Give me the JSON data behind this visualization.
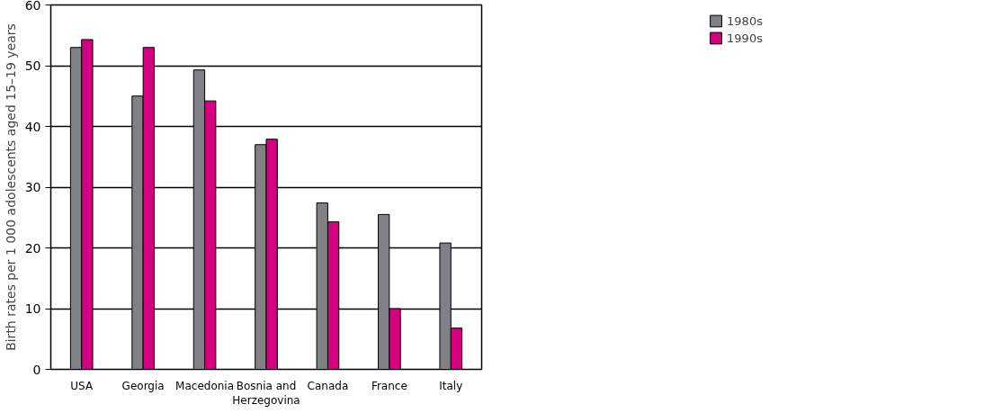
{
  "chart_data": {
    "type": "bar",
    "ylabel": "Birth rates per 1 000 adolescents aged 15–19 years",
    "categories": [
      "USA",
      "Georgia",
      "Macedonia",
      "Bosnia and Herzegovina",
      "Canada",
      "France",
      "Italy"
    ],
    "series": [
      {
        "name": "1980s",
        "color": "#808085",
        "values": [
          53,
          45,
          49.3,
          37,
          27.4,
          25.5,
          20.8
        ]
      },
      {
        "name": "1990s",
        "color": "#d4007f",
        "values": [
          54.3,
          53,
          44.2,
          37.9,
          24.3,
          10,
          6.8
        ]
      }
    ],
    "ylim": [
      0,
      60
    ],
    "yticks": [
      0,
      10,
      20,
      30,
      40,
      50,
      60
    ],
    "grid": "y",
    "legend": "top right"
  }
}
